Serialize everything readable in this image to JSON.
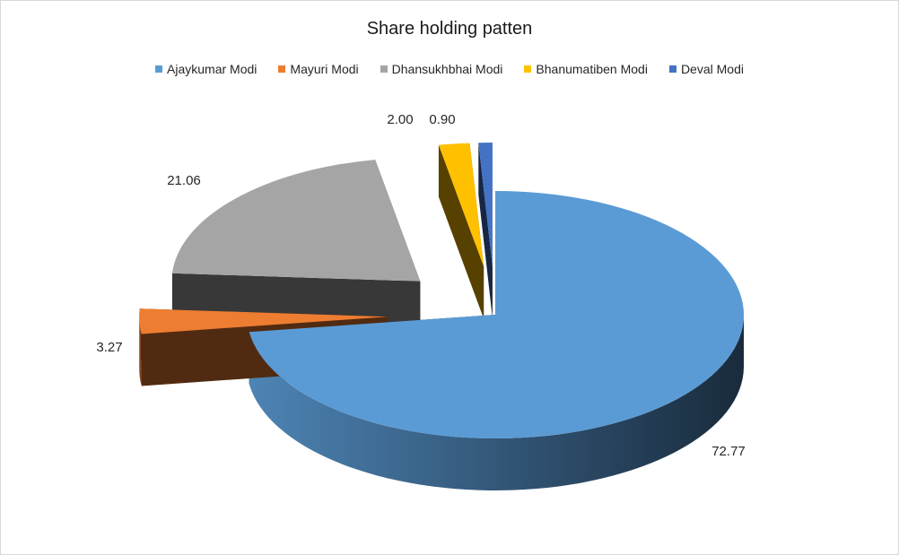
{
  "chart_data": {
    "type": "pie",
    "title": "Share holding patten",
    "legend_position": "top",
    "series": [
      {
        "name": "Ajaykumar Modi",
        "value": 72.77,
        "label": "72.77",
        "color": "#5b9bd5"
      },
      {
        "name": "Mayuri Modi",
        "value": 3.27,
        "label": "3.27",
        "color": "#ed7d31"
      },
      {
        "name": "Dhansukhbhai Modi",
        "value": 21.06,
        "label": "21.06",
        "color": "#a5a5a5"
      },
      {
        "name": "Bhanumatiben Modi",
        "value": 2.0,
        "label": "2.00",
        "color": "#ffc000"
      },
      {
        "name": "Deval Modi",
        "value": 0.9,
        "label": "0.90",
        "color": "#4472c4"
      }
    ]
  }
}
